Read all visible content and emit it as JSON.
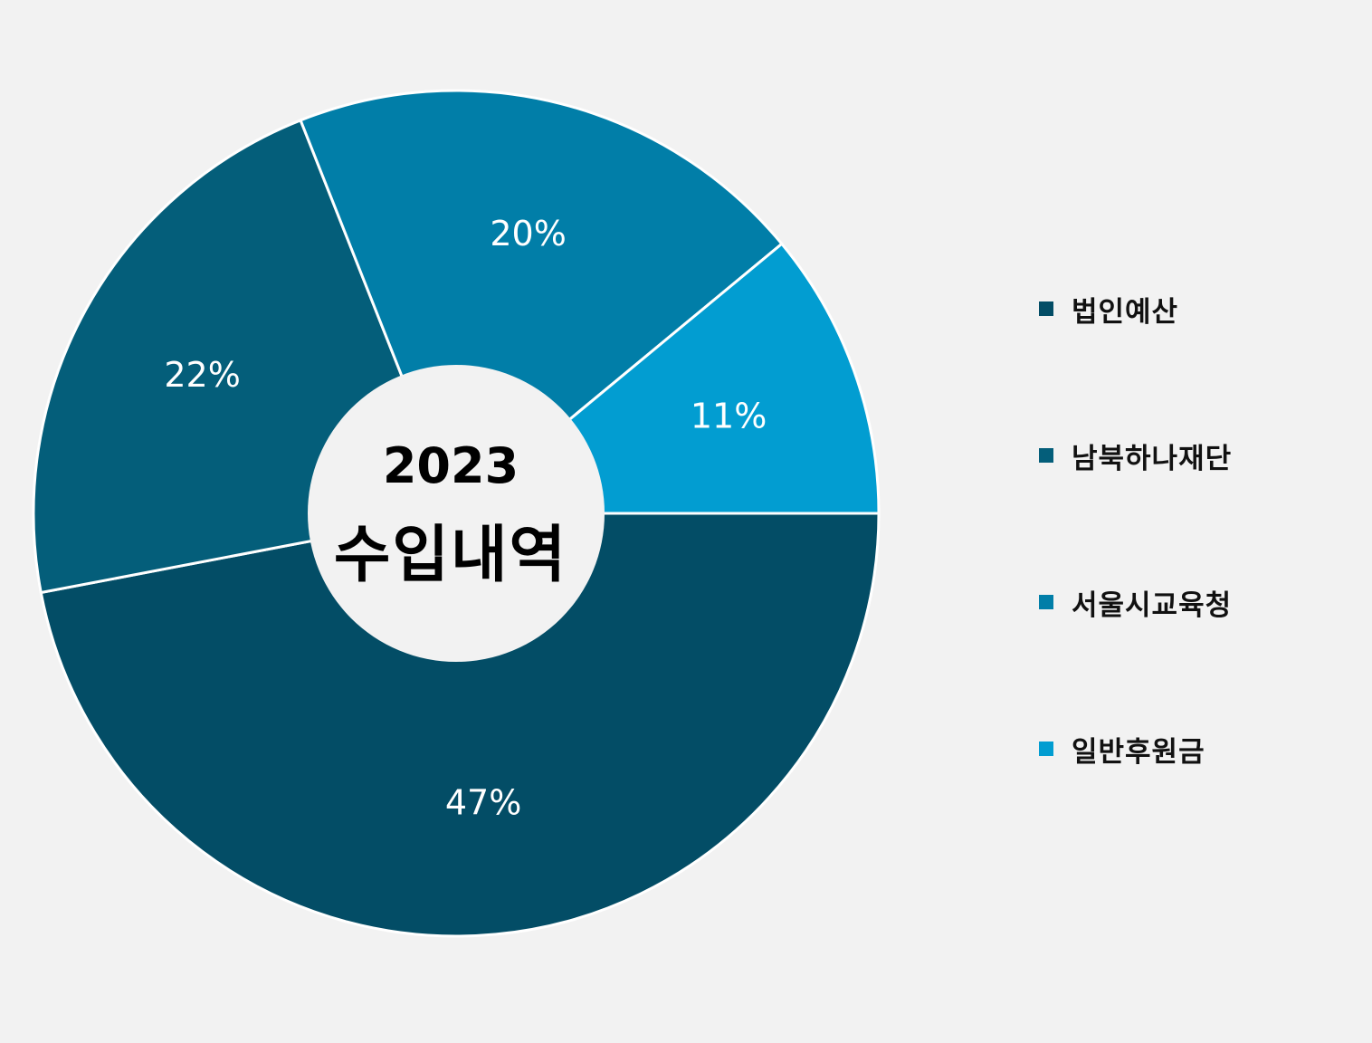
{
  "chart_data": {
    "type": "pie",
    "variant": "donut",
    "center_label": {
      "year": "2023",
      "title": "수입내역"
    },
    "categories": [
      "법인예산",
      "남북하나재단",
      "서울시교육청",
      "일반후원금"
    ],
    "values": [
      47,
      22,
      20,
      11
    ],
    "data_labels": [
      "47%",
      "22%",
      "20%",
      "11%"
    ],
    "unit": "%",
    "colors": [
      "#034d66",
      "#045e7a",
      "#017ea8",
      "#029dd1"
    ],
    "legend_position": "right"
  }
}
